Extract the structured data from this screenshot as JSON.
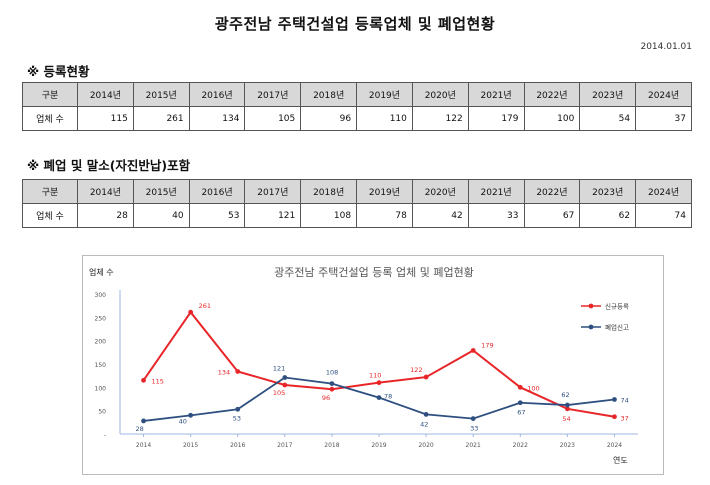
{
  "page": {
    "title": "광주전남 주택건설업 등록업체 및 폐업현황",
    "date": "2014.01.01"
  },
  "registration": {
    "heading": "※ 등록현황",
    "row_header": "구분",
    "row_label": "업체 수",
    "years": [
      "2014년",
      "2015년",
      "2016년",
      "2017년",
      "2018년",
      "2019년",
      "2020년",
      "2021년",
      "2022년",
      "2023년",
      "2024년"
    ],
    "values": [
      "115",
      "261",
      "134",
      "105",
      "96",
      "110",
      "122",
      "179",
      "100",
      "54",
      "37"
    ]
  },
  "closure": {
    "heading": "※ 폐업 및 말소(자진반납)포함",
    "row_header": "구분",
    "row_label": "업체 수",
    "years": [
      "2014년",
      "2015년",
      "2016년",
      "2017년",
      "2018년",
      "2019년",
      "2020년",
      "2021년",
      "2022년",
      "2023년",
      "2024년"
    ],
    "values": [
      "28",
      "40",
      "53",
      "121",
      "108",
      "78",
      "42",
      "33",
      "67",
      "62",
      "74"
    ]
  },
  "chart_data": {
    "type": "line",
    "title": "광주전남 주택건설업 등록 업체 및 폐업현황",
    "ylabel": "업체 수",
    "xlabel": "연도",
    "x": [
      "2014",
      "2015",
      "2016",
      "2017",
      "2018",
      "2019",
      "2020",
      "2021",
      "2022",
      "2023",
      "2024"
    ],
    "ylim": [
      0,
      300
    ],
    "yticks": [
      "-",
      "50",
      "100",
      "150",
      "200",
      "250",
      "300"
    ],
    "legend_position": "right",
    "series": [
      {
        "name": "신규등록",
        "color": "#e8262a",
        "values": [
          115,
          261,
          134,
          105,
          96,
          110,
          122,
          179,
          100,
          54,
          37
        ]
      },
      {
        "name": "폐업신고",
        "color": "#2e4f80",
        "values": [
          28,
          40,
          53,
          121,
          108,
          78,
          42,
          33,
          67,
          62,
          74
        ]
      }
    ]
  }
}
